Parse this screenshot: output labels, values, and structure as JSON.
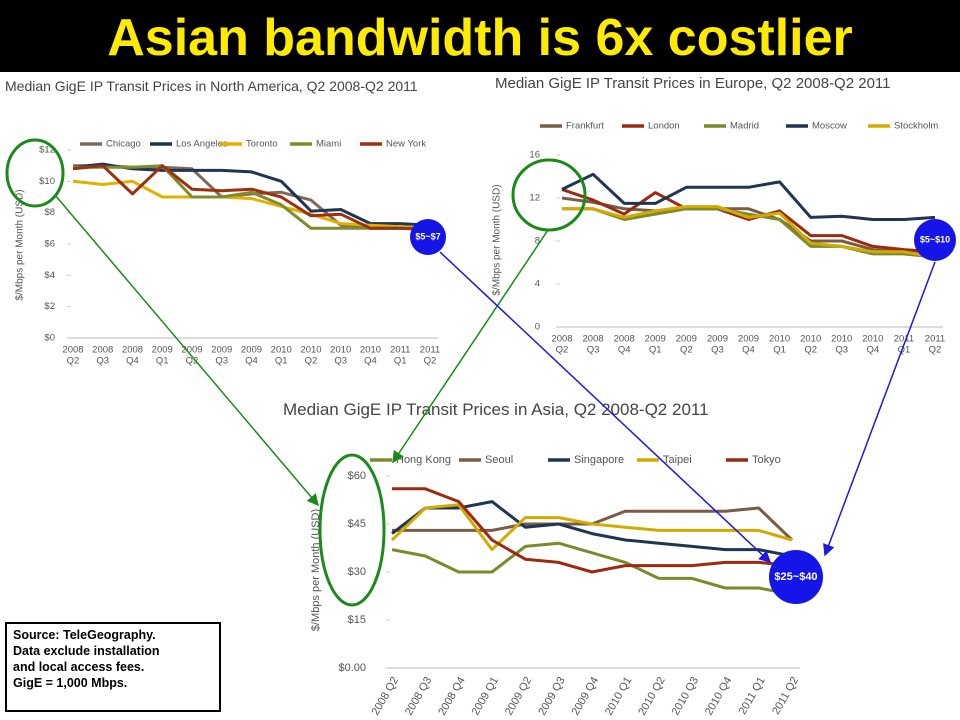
{
  "title": "Asian bandwidth is 6x costlier",
  "annotations": [
    "$5~$7",
    "$5~$10",
    "$25~$40"
  ],
  "source": [
    "Source: TeleGeography.",
    "Data exclude installation",
    "and local access fees.",
    "GigE = 1,000 Mbps."
  ],
  "chart_data": [
    {
      "type": "line",
      "title": "Median GigE IP Transit Prices in North America, Q2 2008-Q2 2011",
      "y_label": "$/Mbps per Month (USD)",
      "categories": [
        [
          "2008",
          "Q2"
        ],
        [
          "2008",
          "Q3"
        ],
        [
          "2008",
          "Q4"
        ],
        [
          "2009",
          "Q1"
        ],
        [
          "2009",
          "Q2"
        ],
        [
          "2009",
          "Q3"
        ],
        [
          "2009",
          "Q4"
        ],
        [
          "2010",
          "Q1"
        ],
        [
          "2010",
          "Q2"
        ],
        [
          "2010",
          "Q3"
        ],
        [
          "2010",
          "Q4"
        ],
        [
          "2011",
          "Q1"
        ],
        [
          "2011",
          "Q2"
        ]
      ],
      "ylim": [
        0,
        12
      ],
      "yticks": [
        {
          "value": 0,
          "label": "$0"
        },
        {
          "value": 2,
          "label": "$2"
        },
        {
          "value": 4,
          "label": "$4"
        },
        {
          "value": 6,
          "label": "$6"
        },
        {
          "value": 8,
          "label": "$8"
        },
        {
          "value": 10,
          "label": "$10"
        },
        {
          "value": 12,
          "label": "$12"
        }
      ],
      "grid": false,
      "series": [
        {
          "name": "Chicago",
          "color": "#7f6a58",
          "values": [
            11,
            11,
            10.9,
            10.9,
            10.8,
            9,
            9.2,
            9.3,
            8.8,
            7.2,
            7,
            7,
            7.1
          ]
        },
        {
          "name": "Los Angeles",
          "color": "#1f3552",
          "values": [
            10.9,
            11.1,
            10.8,
            10.7,
            10.7,
            10.7,
            10.6,
            10,
            8.1,
            8.2,
            7.3,
            7.3,
            7.2
          ]
        },
        {
          "name": "Toronto",
          "color": "#e3b000",
          "values": [
            10,
            9.8,
            10,
            9,
            9,
            9,
            8.9,
            8.4,
            7.9,
            7.3,
            7.2,
            7.1,
            7
          ]
        },
        {
          "name": "Miami",
          "color": "#7f8c2a",
          "values": [
            10.9,
            10.9,
            10.9,
            11,
            9,
            9,
            9.3,
            8.5,
            7,
            7,
            7,
            7,
            7
          ]
        },
        {
          "name": "New York",
          "color": "#9c3112",
          "values": [
            10.8,
            11,
            9.2,
            11,
            9.5,
            9.4,
            9.5,
            9,
            7.8,
            7.9,
            7,
            7,
            6.9
          ]
        }
      ]
    },
    {
      "type": "line",
      "title": "Median GigE IP Transit Prices in Europe, Q2 2008-Q2 2011",
      "y_label": "$/Mbps per Month (USD)",
      "categories": [
        [
          "2008",
          "Q2"
        ],
        [
          "2008",
          "Q3"
        ],
        [
          "2008",
          "Q4"
        ],
        [
          "2009",
          "Q1"
        ],
        [
          "2009",
          "Q2"
        ],
        [
          "2009",
          "Q3"
        ],
        [
          "2009",
          "Q4"
        ],
        [
          "2010",
          "Q1"
        ],
        [
          "2010",
          "Q2"
        ],
        [
          "2010",
          "Q3"
        ],
        [
          "2010",
          "Q4"
        ],
        [
          "2011",
          "Q1"
        ],
        [
          "2011",
          "Q2"
        ]
      ],
      "ylim": [
        0,
        16
      ],
      "yticks": [
        0,
        4,
        8,
        12,
        16
      ],
      "grid": false,
      "series": [
        {
          "name": "Frankfurt",
          "color": "#7a5c45",
          "values": [
            12,
            11.6,
            11,
            10.8,
            11,
            11,
            11,
            10,
            8,
            8,
            7.2,
            7,
            6.8
          ]
        },
        {
          "name": "London",
          "color": "#9c2a10",
          "values": [
            12.8,
            11.8,
            10.5,
            12.5,
            11,
            11,
            10,
            10.8,
            8.5,
            8.5,
            7.5,
            7.2,
            7
          ]
        },
        {
          "name": "Madrid",
          "color": "#7b8a2a",
          "values": [
            11,
            11,
            10,
            10.5,
            11,
            11,
            10.5,
            10,
            7.5,
            7.5,
            6.8,
            6.8,
            6.5
          ]
        },
        {
          "name": "Moscow",
          "color": "#1f3552",
          "values": [
            12.8,
            14.2,
            11.5,
            11.5,
            13,
            13,
            13,
            13.5,
            10.2,
            10.3,
            10,
            10,
            10.2
          ]
        },
        {
          "name": "Stockholm",
          "color": "#d4aa00",
          "values": [
            11,
            11,
            10.2,
            10.8,
            11.2,
            11.2,
            10.2,
            10.6,
            7.8,
            7.5,
            7,
            7,
            6.5
          ]
        }
      ]
    },
    {
      "type": "line",
      "title": "Median GigE IP Transit Prices in Asia, Q2 2008-Q2 2011",
      "y_label": "$/Mbps per Month (USD)",
      "categories": [
        "2008 Q2",
        "2008 Q3",
        "2008 Q4",
        "2009 Q1",
        "2009 Q2",
        "2009 Q3",
        "2009 Q4",
        "2010 Q1",
        "2010 Q2",
        "2010 Q3",
        "2010 Q4",
        "2011 Q1",
        "2011 Q2"
      ],
      "ylim": [
        0,
        60
      ],
      "yticks": [
        {
          "value": 0,
          "label": "$0.00"
        },
        {
          "value": 15,
          "label": "$15"
        },
        {
          "value": 30,
          "label": "$30"
        },
        {
          "value": 45,
          "label": "$45"
        },
        {
          "value": 60,
          "label": "$60"
        }
      ],
      "grid": false,
      "series": [
        {
          "name": "Hong Kong",
          "color": "#7b8a2a",
          "values": [
            37,
            35,
            30,
            30,
            38,
            39,
            36,
            33,
            28,
            28,
            25,
            25,
            23
          ]
        },
        {
          "name": "Seoul",
          "color": "#7a5c45",
          "values": [
            43,
            43,
            43,
            43,
            45,
            45,
            45,
            49,
            49,
            49,
            49,
            50,
            40
          ]
        },
        {
          "name": "Singapore",
          "color": "#1f3552",
          "values": [
            42,
            50,
            50,
            52,
            44,
            45,
            42,
            40,
            39,
            38,
            37,
            37,
            35
          ]
        },
        {
          "name": "Taipei",
          "color": "#d4aa00",
          "values": [
            40,
            50,
            51,
            37,
            47,
            47,
            45,
            44,
            43,
            43,
            43,
            43,
            40
          ]
        },
        {
          "name": "Tokyo",
          "color": "#9c2a10",
          "values": [
            56,
            56,
            52,
            40,
            34,
            33,
            30,
            32,
            32,
            32,
            33,
            33,
            32
          ]
        }
      ]
    }
  ]
}
